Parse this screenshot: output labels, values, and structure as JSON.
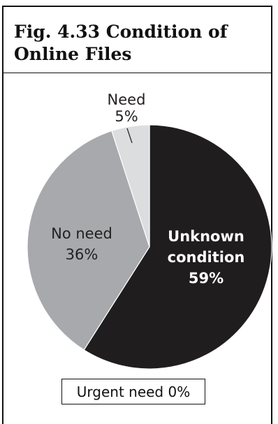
{
  "title_line1": "Fig. 4.33 Condition of",
  "title_line2": "Online Files",
  "note": "Urgent need 0%",
  "chart_data": {
    "type": "pie",
    "slices": [
      {
        "label": "Unknown condition",
        "label_lines": [
          "Unknown",
          "condition",
          "59%"
        ],
        "value": 59,
        "color": "#1f1d1e",
        "text_color": "#ffffff",
        "bold": true
      },
      {
        "label": "No need",
        "label_lines": [
          "No need",
          "36%"
        ],
        "value": 36,
        "color": "#a7a9ac",
        "text_color": "#231f20",
        "bold": false
      },
      {
        "label": "Need",
        "label_lines": [
          "Need",
          "5%"
        ],
        "value": 5,
        "color": "#dcddde",
        "text_color": "#231f20",
        "bold": false
      }
    ],
    "start": "top",
    "direction": "clockwise",
    "annotation": "Urgent need 0%"
  }
}
